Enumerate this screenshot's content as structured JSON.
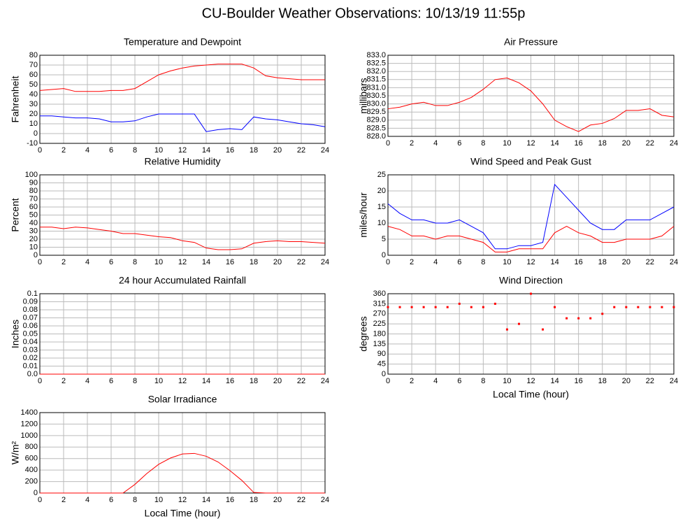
{
  "title": "CU-Boulder Weather Observations: 10/13/19 11:55p",
  "chart_data": [
    {
      "type": "line",
      "title": "Temperature and Dewpoint",
      "ylabel": "Fahrenheit",
      "x": [
        0,
        1,
        2,
        3,
        4,
        5,
        6,
        7,
        8,
        9,
        10,
        11,
        12,
        13,
        14,
        15,
        16,
        17,
        18,
        19,
        20,
        21,
        22,
        23,
        24
      ],
      "series": [
        {
          "name": "Temperature",
          "color": "#ff0000",
          "values": [
            44,
            45,
            46,
            43,
            43,
            43,
            44,
            44,
            46,
            53,
            60,
            64,
            67,
            69,
            70,
            71,
            71,
            71,
            67,
            59,
            57,
            56,
            55,
            55,
            55
          ]
        },
        {
          "name": "Dewpoint",
          "color": "#0000ff",
          "values": [
            18,
            18,
            17,
            16,
            16,
            15,
            12,
            12,
            13,
            17,
            20,
            20,
            20,
            20,
            2,
            4,
            5,
            4,
            17,
            15,
            14,
            12,
            10,
            9,
            7
          ]
        }
      ],
      "xlim": [
        0,
        24
      ],
      "xticks": [
        0,
        2,
        4,
        6,
        8,
        10,
        12,
        14,
        16,
        18,
        20,
        22,
        24
      ],
      "ylim": [
        -10,
        80
      ],
      "yticks": [
        -10,
        0,
        10,
        20,
        30,
        40,
        50,
        60,
        70,
        80
      ],
      "grid": true
    },
    {
      "type": "line",
      "title": "Air Pressure",
      "ylabel": "millibars",
      "x": [
        0,
        1,
        2,
        3,
        4,
        5,
        6,
        7,
        8,
        9,
        10,
        11,
        12,
        13,
        14,
        15,
        16,
        17,
        18,
        19,
        20,
        21,
        22,
        23,
        24
      ],
      "series": [
        {
          "name": "Air Pressure",
          "color": "#ff0000",
          "values": [
            829.7,
            829.8,
            830.0,
            830.1,
            829.9,
            829.9,
            830.1,
            830.4,
            830.9,
            831.5,
            831.6,
            831.3,
            830.8,
            830.0,
            829.0,
            828.6,
            828.3,
            828.7,
            828.8,
            829.1,
            829.6,
            829.6,
            829.7,
            829.3,
            829.2
          ]
        }
      ],
      "xlim": [
        0,
        24
      ],
      "xticks": [
        0,
        2,
        4,
        6,
        8,
        10,
        12,
        14,
        16,
        18,
        20,
        22,
        24
      ],
      "ylim": [
        828,
        833
      ],
      "yticks": [
        {
          "value": 828,
          "label": "828.0"
        },
        828.5,
        {
          "value": 829,
          "label": "829.0"
        },
        829.5,
        {
          "value": 830,
          "label": "830.0"
        },
        830.5,
        {
          "value": 831,
          "label": "831.0"
        },
        831.5,
        {
          "value": 832,
          "label": "832.0"
        },
        832.5,
        {
          "value": 833,
          "label": "833.0"
        }
      ],
      "grid": true
    },
    {
      "type": "line",
      "title": "Relative Humidity",
      "ylabel": "Percent",
      "x": [
        0,
        1,
        2,
        3,
        4,
        5,
        6,
        7,
        8,
        9,
        10,
        11,
        12,
        13,
        14,
        15,
        16,
        17,
        18,
        19,
        20,
        21,
        22,
        23,
        24
      ],
      "series": [
        {
          "name": "Relative Humidity",
          "color": "#ff0000",
          "values": [
            35,
            35,
            33,
            35,
            34,
            32,
            30,
            27,
            27,
            25,
            23,
            22,
            18,
            16,
            9,
            7,
            7,
            8,
            15,
            17,
            18,
            17,
            17,
            16,
            15
          ]
        }
      ],
      "xlim": [
        0,
        24
      ],
      "xticks": [
        0,
        2,
        4,
        6,
        8,
        10,
        12,
        14,
        16,
        18,
        20,
        22,
        24
      ],
      "ylim": [
        0,
        100
      ],
      "yticks": [
        0,
        10,
        20,
        30,
        40,
        50,
        60,
        70,
        80,
        90,
        100
      ],
      "grid": true
    },
    {
      "type": "line",
      "title": "Wind Speed and Peak Gust",
      "ylabel": "miles/hour",
      "x": [
        0,
        1,
        2,
        3,
        4,
        5,
        6,
        7,
        8,
        9,
        10,
        11,
        12,
        13,
        14,
        15,
        16,
        17,
        18,
        19,
        20,
        21,
        22,
        23,
        24
      ],
      "series": [
        {
          "name": "Peak Gust",
          "color": "#0000ff",
          "values": [
            16,
            13,
            11,
            11,
            10,
            10,
            11,
            9,
            7,
            2,
            2,
            3,
            3,
            4,
            22,
            18,
            14,
            10,
            8,
            8,
            11,
            11,
            11,
            13,
            15
          ]
        },
        {
          "name": "Wind Speed",
          "color": "#ff0000",
          "values": [
            9,
            8,
            6,
            6,
            5,
            6,
            6,
            5,
            4,
            1,
            1,
            2,
            2,
            2,
            7,
            9,
            7,
            6,
            4,
            4,
            5,
            5,
            5,
            6,
            9
          ]
        }
      ],
      "xlim": [
        0,
        24
      ],
      "xticks": [
        0,
        2,
        4,
        6,
        8,
        10,
        12,
        14,
        16,
        18,
        20,
        22,
        24
      ],
      "ylim": [
        0,
        25
      ],
      "yticks": [
        0,
        5,
        10,
        15,
        20,
        25
      ],
      "grid": true
    },
    {
      "type": "line",
      "title": "24 hour Accumulated Rainfall",
      "ylabel": "Inches",
      "x": [
        0,
        24
      ],
      "series": [
        {
          "name": "Rainfall",
          "color": "#ff0000",
          "values": [
            0,
            0
          ]
        }
      ],
      "xlim": [
        0,
        24
      ],
      "xticks": [
        0,
        2,
        4,
        6,
        8,
        10,
        12,
        14,
        16,
        18,
        20,
        22,
        24
      ],
      "ylim": [
        0,
        0.1
      ],
      "yticks": [
        {
          "value": 0,
          "label": "0.0"
        },
        0.01,
        0.02,
        0.03,
        0.04,
        0.05,
        0.06,
        0.07,
        0.08,
        0.09,
        0.1
      ],
      "grid": true
    },
    {
      "type": "scatter",
      "title": "Wind Direction",
      "ylabel": "degrees",
      "xlabel": "Local Time (hour)",
      "x": [
        0,
        1,
        2,
        3,
        4,
        5,
        6,
        7,
        8,
        9,
        10,
        11,
        12,
        13,
        14,
        15,
        16,
        17,
        18,
        19,
        20,
        21,
        22,
        23,
        24
      ],
      "series": [
        {
          "name": "Wind Direction",
          "color": "#ff0000",
          "values": [
            300,
            300,
            300,
            300,
            300,
            300,
            315,
            300,
            300,
            315,
            200,
            225,
            360,
            200,
            300,
            250,
            250,
            250,
            270,
            300,
            300,
            300,
            300,
            300,
            300
          ]
        }
      ],
      "xlim": [
        0,
        24
      ],
      "xticks": [
        0,
        2,
        4,
        6,
        8,
        10,
        12,
        14,
        16,
        18,
        20,
        22,
        24
      ],
      "ylim": [
        0,
        360
      ],
      "yticks": [
        0,
        45,
        90,
        135,
        180,
        225,
        270,
        315,
        360
      ],
      "grid": true
    },
    {
      "type": "line",
      "title": "Solar Irradiance",
      "ylabel": "W/m²",
      "xlabel": "Local Time (hour)",
      "x": [
        0,
        1,
        2,
        3,
        4,
        5,
        6,
        7,
        8,
        9,
        10,
        11,
        12,
        13,
        14,
        15,
        16,
        17,
        18,
        19,
        20,
        21,
        22,
        23,
        24
      ],
      "series": [
        {
          "name": "Solar Irradiance",
          "color": "#ff0000",
          "values": [
            0,
            0,
            0,
            0,
            0,
            0,
            0,
            0,
            150,
            340,
            500,
            610,
            680,
            690,
            640,
            540,
            390,
            220,
            10,
            0,
            0,
            0,
            0,
            0,
            0
          ]
        }
      ],
      "xlim": [
        0,
        24
      ],
      "xticks": [
        0,
        2,
        4,
        6,
        8,
        10,
        12,
        14,
        16,
        18,
        20,
        22,
        24
      ],
      "ylim": [
        0,
        1400
      ],
      "yticks": [
        0,
        200,
        400,
        600,
        800,
        1000,
        1200,
        1400
      ],
      "grid": true
    }
  ]
}
